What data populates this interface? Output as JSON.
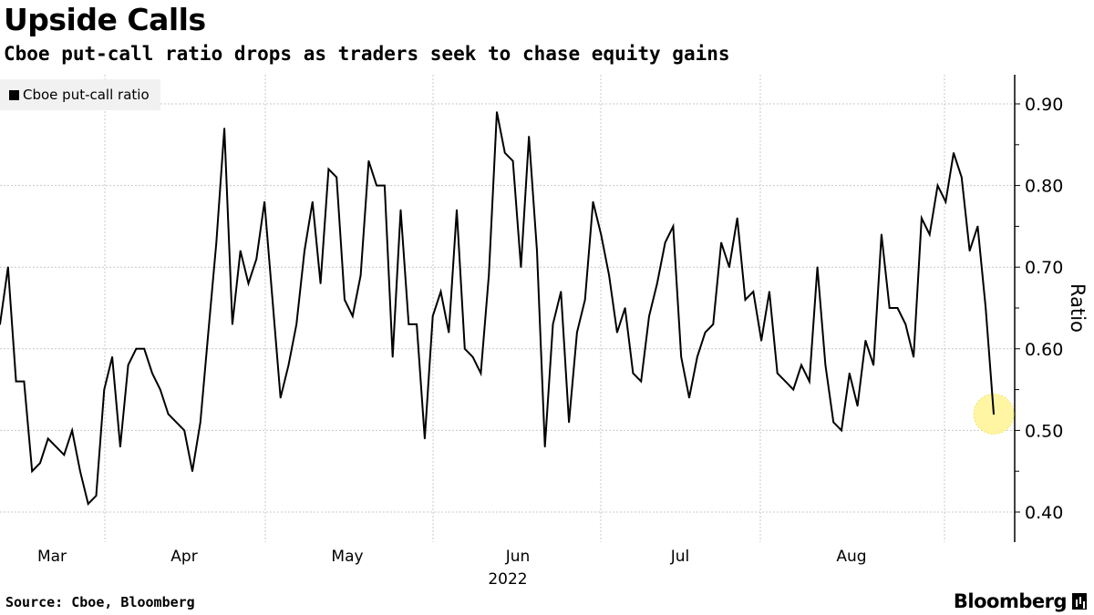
{
  "header": {
    "title": "Upside Calls",
    "subtitle": "Cboe put-call ratio drops as traders seek to chase equity gains"
  },
  "footer": {
    "source": "Source: Cboe, Bloomberg",
    "brand": "Bloomberg"
  },
  "colors": {
    "line": "#000000",
    "highlight": "#fff59a",
    "grid": "#c8c8c8"
  },
  "chart_data": {
    "type": "line",
    "title": "Upside Calls",
    "subtitle": "Cboe put-call ratio drops as traders seek to chase equity gains",
    "xlabel": "2022",
    "ylabel": "Ratio",
    "ylim": [
      0.36,
      0.94
    ],
    "yticks": [
      0.4,
      0.5,
      0.6,
      0.7,
      0.8,
      0.9
    ],
    "ytick_labels": [
      "0.40",
      "0.50",
      "0.60",
      "0.70",
      "0.80",
      "0.90"
    ],
    "xtick_labels": [
      "Mar",
      "Apr",
      "May",
      "Jun",
      "Jul",
      "Aug"
    ],
    "year_label": "2022",
    "grid": true,
    "legend_position": "top-left",
    "series": [
      {
        "name": "Cboe put-call ratio",
        "values": [
          0.63,
          0.7,
          0.56,
          0.56,
          0.45,
          0.46,
          0.49,
          0.48,
          0.47,
          0.5,
          0.45,
          0.41,
          0.42,
          0.55,
          0.59,
          0.48,
          0.58,
          0.6,
          0.6,
          0.57,
          0.55,
          0.52,
          0.51,
          0.5,
          0.45,
          0.51,
          0.62,
          0.73,
          0.87,
          0.63,
          0.72,
          0.68,
          0.71,
          0.78,
          0.66,
          0.54,
          0.58,
          0.63,
          0.72,
          0.78,
          0.68,
          0.82,
          0.81,
          0.66,
          0.64,
          0.69,
          0.83,
          0.8,
          0.8,
          0.59,
          0.77,
          0.63,
          0.63,
          0.49,
          0.64,
          0.67,
          0.62,
          0.77,
          0.6,
          0.59,
          0.57,
          0.69,
          0.89,
          0.84,
          0.83,
          0.7,
          0.86,
          0.72,
          0.48,
          0.63,
          0.67,
          0.51,
          0.62,
          0.66,
          0.78,
          0.74,
          0.69,
          0.62,
          0.65,
          0.57,
          0.56,
          0.64,
          0.68,
          0.73,
          0.75,
          0.59,
          0.54,
          0.59,
          0.62,
          0.63,
          0.73,
          0.7,
          0.76,
          0.66,
          0.67,
          0.61,
          0.67,
          0.57,
          0.56,
          0.55,
          0.58,
          0.56,
          0.7,
          0.58,
          0.51,
          0.5,
          0.57,
          0.53,
          0.61,
          0.58,
          0.74,
          0.65,
          0.65,
          0.63,
          0.59,
          0.76,
          0.74,
          0.8,
          0.78,
          0.84,
          0.81,
          0.72,
          0.75,
          0.65,
          0.52
        ]
      }
    ],
    "highlight": "last point"
  }
}
